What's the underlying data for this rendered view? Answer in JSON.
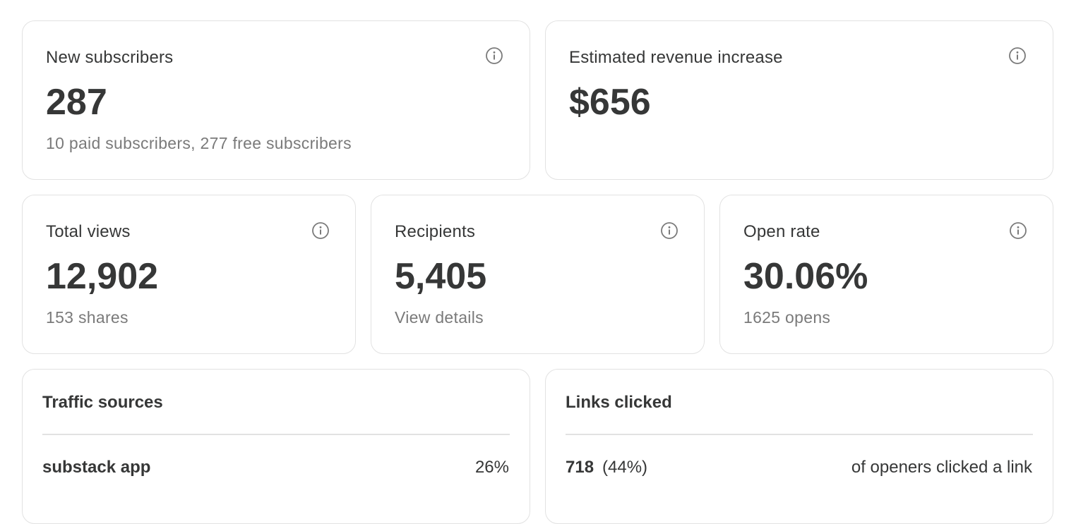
{
  "new_subscribers": {
    "label": "New subscribers",
    "value": "287",
    "detail": "10 paid subscribers, 277 free subscribers",
    "icon": "info-icon"
  },
  "revenue": {
    "label": "Estimated revenue increase",
    "value": "$656",
    "icon": "info-icon"
  },
  "total_views": {
    "label": "Total views",
    "value": "12,902",
    "detail": "153 shares",
    "icon": "info-icon"
  },
  "recipients": {
    "label": "Recipients",
    "value": "5,405",
    "detail": "View details",
    "icon": "info-icon"
  },
  "open_rate": {
    "label": "Open rate",
    "value": "30.06%",
    "detail": "1625 opens",
    "icon": "info-icon"
  },
  "traffic_sources": {
    "title": "Traffic sources",
    "rows": [
      {
        "source": "substack app",
        "percent": "26%"
      }
    ]
  },
  "links_clicked": {
    "title": "Links clicked",
    "count": "718",
    "percent": "(44%)",
    "caption": "of openers clicked a link"
  },
  "colors": {
    "text": "#363737",
    "muted": "#7a7a7a",
    "border": "#e2e2e2"
  }
}
